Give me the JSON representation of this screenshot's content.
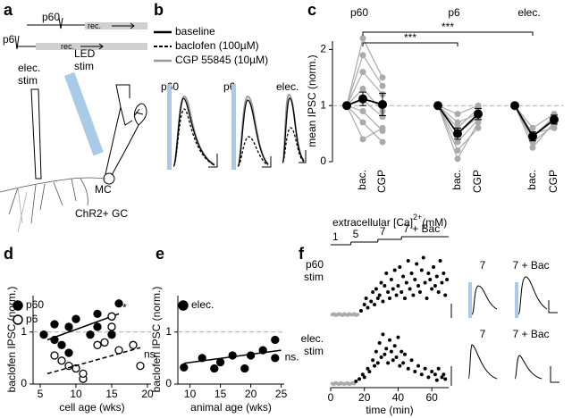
{
  "panel_labels": [
    "a",
    "b",
    "c",
    "d",
    "e",
    "f"
  ],
  "diagram_a": {
    "timeline": [
      {
        "label": "p60",
        "rec": "rec."
      },
      {
        "label": "p6",
        "rec": "rec."
      }
    ],
    "led_stim": [
      "LED",
      "stim"
    ],
    "elec_stim": [
      "elec.",
      "stim"
    ],
    "mc": "MC",
    "gc": "ChR2+ GC"
  },
  "traces_b": {
    "legend": [
      "baseline",
      "baclofen (100µM)",
      "CGP 55845 (10µM)"
    ],
    "labels": [
      "p60",
      "p6",
      "elec."
    ]
  },
  "chart_data": [
    {
      "type": "dot",
      "ylabel": "mean IPSC (norm.)",
      "ylim": [
        0,
        2.15
      ],
      "yticks": [
        0,
        1,
        2
      ],
      "reference_line": 1,
      "categories": [
        null,
        "bac.",
        "CGP",
        null,
        "bac.",
        "CGP",
        null,
        "bac.",
        "CGP"
      ],
      "groups": [
        {
          "name": "p60",
          "cells": [
            [
              1,
              2.2,
              1.5
            ],
            [
              1,
              1.9,
              1.35
            ],
            [
              1,
              1.6,
              1.2
            ],
            [
              1,
              1.3,
              0.9
            ],
            [
              1,
              1.1,
              0.8
            ],
            [
              1,
              0.9,
              0.55
            ],
            [
              1,
              0.7,
              0.35
            ],
            [
              1,
              0.4,
              0.6
            ]
          ]
        },
        {
          "name": "p6",
          "cells": [
            [
              1,
              0.85,
              1.0
            ],
            [
              1,
              0.6,
              0.95
            ],
            [
              1,
              0.5,
              0.8
            ],
            [
              1,
              0.35,
              0.75
            ],
            [
              1,
              0.2,
              0.6
            ],
            [
              1,
              0.05,
              0.7
            ],
            [
              1,
              0.7,
              0.85
            ]
          ]
        },
        {
          "name": "elec.",
          "cells": [
            [
              1,
              0.6,
              0.85
            ],
            [
              1,
              0.45,
              0.8
            ],
            [
              1,
              0.35,
              0.65
            ],
            [
              1,
              0.25,
              0.7
            ],
            [
              1,
              0.5,
              0.6
            ]
          ]
        }
      ],
      "mean": {
        "color": "#000000",
        "values": [
          1,
          1.12,
          1.02,
          1,
          0.5,
          0.85,
          1,
          0.45,
          0.75
        ],
        "errors": [
          0,
          0.12,
          0.2,
          0,
          0.1,
          0.1,
          0,
          0.08,
          0.08
        ]
      },
      "cell_color": "#aaaaaa",
      "annotations": [
        "***",
        "***"
      ]
    },
    {
      "type": "scatter",
      "xlabel": "cell age (wks)",
      "ylabel": "baclofen IPSC (norm.)",
      "xlim": [
        4,
        20.5
      ],
      "ylim": [
        0,
        1.7
      ],
      "xticks": [
        5,
        10,
        15,
        20
      ],
      "yticks": [
        0,
        1
      ],
      "reference_line": 1,
      "series": [
        {
          "name": "p60",
          "color": "#000000",
          "marker": "filled",
          "x": [
            5.5,
            7,
            7,
            8,
            9,
            9,
            10,
            12,
            13,
            13,
            15,
            15,
            16
          ],
          "values": [
            0.95,
            1.15,
            0.85,
            0.75,
            1.1,
            0.6,
            1.25,
            0.95,
            1.35,
            1.1,
            1.3,
            0.95,
            1.55
          ],
          "fit": {
            "style": "solid",
            "x": [
              6,
              16
            ],
            "values": [
              0.85,
              1.35
            ]
          },
          "annotation": "*"
        },
        {
          "name": "p6",
          "color": "#000000",
          "marker": "open",
          "x": [
            7,
            8,
            9,
            10,
            11,
            11,
            13,
            14,
            15,
            15,
            16,
            18,
            19
          ],
          "values": [
            0.55,
            0.45,
            0.35,
            0.3,
            0.1,
            0.2,
            0.75,
            0.8,
            1.1,
            1.3,
            0.65,
            0.75,
            0.35
          ],
          "fit": {
            "style": "dashed",
            "x": [
              6,
              19
            ],
            "values": [
              0.2,
              0.7
            ]
          },
          "annotation": "ns."
        }
      ]
    },
    {
      "type": "scatter",
      "xlabel": "animal age (wks)",
      "ylabel": "baclofen IPSC (norm.)",
      "xlim": [
        8,
        25.5
      ],
      "ylim": [
        0,
        1.7
      ],
      "xticks": [
        10,
        15,
        20,
        25
      ],
      "yticks": [
        0,
        1
      ],
      "reference_line": 1,
      "series": [
        {
          "name": "elec.",
          "color": "#000000",
          "marker": "filled",
          "x": [
            9,
            12,
            14,
            15,
            17,
            19,
            20,
            22,
            24,
            24
          ],
          "values": [
            0.32,
            0.5,
            0.3,
            0.42,
            0.55,
            0.3,
            0.55,
            0.65,
            0.5,
            0.85
          ],
          "fit": {
            "style": "solid",
            "x": [
              9,
              25
            ],
            "values": [
              0.4,
              0.65
            ]
          },
          "annotation": "ns."
        }
      ]
    },
    {
      "type": "timecourse",
      "title": "extracellular [Ca]",
      "title_superscript": "2+",
      "title_unit": "(mM)",
      "xlabel": "time (min)",
      "xlim": [
        0,
        70
      ],
      "xticks": [
        0,
        20,
        40,
        60
      ],
      "ylim": [
        0,
        1
      ],
      "steps": [
        {
          "label": "1",
          "start": 0,
          "end": 12
        },
        {
          "label": "5",
          "start": 12,
          "end": 28
        },
        {
          "label": "7",
          "start": 28,
          "end": 42
        },
        {
          "label": "7 + Bac",
          "start": 42,
          "end": 70
        }
      ],
      "trace_labels": [
        "7",
        "7 + Bac"
      ],
      "subplots": [
        {
          "label": [
            "p60",
            "stim"
          ],
          "series": [
            {
              "color": "#aaaaaa",
              "x": [
                1,
                2,
                3,
                4,
                5,
                6,
                7,
                8,
                9,
                10,
                11,
                12,
                13,
                14,
                15,
                16
              ],
              "values": [
                0.04,
                0.05,
                0.03,
                0.04,
                0.05,
                0.04,
                0.03,
                0.05,
                0.04,
                0.03,
                0.05,
                0.04,
                0.04,
                0.05,
                0.03,
                0.04
              ]
            },
            {
              "color": "#000000",
              "x": [
                18,
                20,
                21,
                22,
                24,
                25,
                26,
                27,
                28,
                29,
                30,
                31,
                32,
                33,
                34,
                35,
                36,
                37,
                38,
                39,
                40,
                41,
                42,
                43,
                44,
                45,
                46,
                47,
                48,
                49,
                50,
                51,
                52,
                53,
                54,
                55,
                56,
                57,
                58,
                59,
                60,
                61,
                62,
                63,
                64,
                65,
                66,
                67,
                68,
                69
              ],
              "values": [
                0.1,
                0.2,
                0.3,
                0.15,
                0.25,
                0.4,
                0.2,
                0.45,
                0.3,
                0.35,
                0.55,
                0.25,
                0.5,
                0.7,
                0.4,
                0.3,
                0.6,
                0.45,
                0.75,
                0.35,
                0.5,
                0.8,
                0.4,
                0.65,
                0.3,
                0.55,
                0.9,
                0.45,
                0.7,
                0.35,
                0.6,
                0.85,
                0.5,
                0.4,
                0.75,
                0.95,
                0.55,
                0.3,
                0.7,
                0.6,
                0.45,
                0.8,
                0.5,
                0.65,
                0.4,
                0.9,
                0.55,
                0.7,
                0.35,
                0.6
              ]
            }
          ]
        },
        {
          "label": [
            "elec.",
            "stim"
          ],
          "series": [
            {
              "color": "#aaaaaa",
              "x": [
                1,
                2,
                3,
                4,
                5,
                6,
                7,
                8,
                9,
                10,
                11,
                12,
                13,
                14
              ],
              "values": [
                0.04,
                0.03,
                0.05,
                0.04,
                0.03,
                0.05,
                0.04,
                0.03,
                0.04,
                0.05,
                0.03,
                0.04,
                0.05,
                0.04
              ]
            },
            {
              "color": "#000000",
              "x": [
                15,
                17,
                19,
                20,
                22,
                23,
                25,
                26,
                27,
                28,
                29,
                30,
                31,
                32,
                33,
                34,
                35,
                36,
                37,
                38,
                39,
                40,
                41,
                42,
                43,
                44,
                46,
                48,
                50,
                52,
                54,
                56,
                58,
                60,
                62,
                63,
                64,
                66,
                67,
                68
              ],
              "values": [
                0.08,
                0.12,
                0.2,
                0.15,
                0.3,
                0.25,
                0.45,
                0.35,
                0.6,
                0.4,
                0.75,
                0.5,
                0.9,
                0.55,
                0.65,
                0.4,
                0.8,
                0.6,
                0.45,
                0.7,
                0.5,
                0.85,
                0.35,
                0.6,
                0.4,
                0.55,
                0.3,
                0.45,
                0.25,
                0.35,
                0.2,
                0.3,
                0.15,
                0.25,
                0.2,
                0.1,
                0.3,
                0.15,
                0.2,
                0.12
              ]
            }
          ]
        }
      ]
    }
  ]
}
